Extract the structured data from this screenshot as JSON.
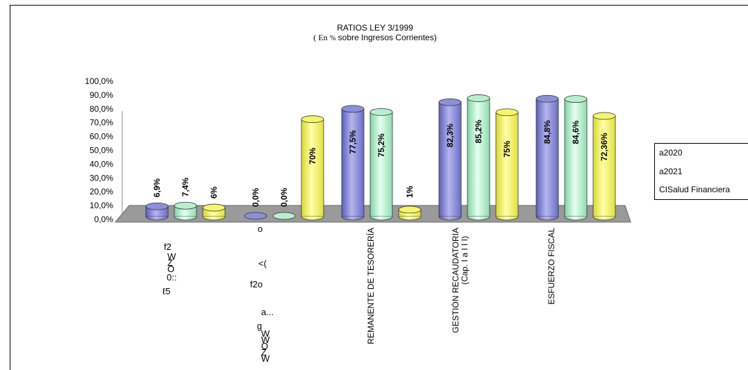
{
  "chart_data": {
    "type": "bar",
    "title": "RATIOS LEY 3/1999",
    "subtitle_prefix": "( En",
    "subtitle_pct": "%",
    "subtitle_rest": "sobre Ingresos Corrientes)",
    "ylim": [
      0,
      100
    ],
    "y_ticks": [
      "0,0%",
      "10,0%",
      "20,0%",
      "30,0%",
      "40,0%",
      "50,0%",
      "60,0%",
      "70,0%",
      "80,0%",
      "90,0%",
      "100,0%"
    ],
    "categories": [
      "",
      "",
      "REMANENTE DE TESORERÍA",
      "GESTIÓN RECAUDATORIA",
      "ESFUERZO FISCAL"
    ],
    "category_sublabels": [
      "",
      "",
      "",
      "(Cap. I a I I I)",
      ""
    ],
    "series": [
      {
        "name": "a2020",
        "color": "#8c8fd8",
        "values": [
          6.9,
          0.0,
          77.5,
          82.3,
          84.8
        ],
        "labels": [
          "6,9%",
          "0,0%",
          "77,5%",
          "82,3%",
          "84,8%"
        ]
      },
      {
        "name": "a2021",
        "color": "#b8f0cf",
        "values": [
          7.4,
          0.0,
          75.2,
          85.2,
          84.6
        ],
        "labels": [
          "7,4%",
          "0,0%",
          "75,2%",
          "85,2%",
          "84,6%"
        ]
      },
      {
        "name": "CISalud Financiera",
        "color": "#f5f56a",
        "values": [
          6,
          70,
          1,
          75,
          72.36
        ],
        "labels": [
          "6%",
          "70%",
          "1%",
          "75%",
          "72,36%"
        ]
      }
    ],
    "legend_position": "right",
    "grid": false
  },
  "artifacts": {
    "cat1": [
      "f2",
      "W",
      "Z",
      "O",
      "0::",
      "ℓ5"
    ],
    "cat2": [
      "o",
      "<(",
      "f2o",
      "a...",
      "g",
      "W",
      "W",
      "O",
      "Z",
      "W"
    ]
  }
}
